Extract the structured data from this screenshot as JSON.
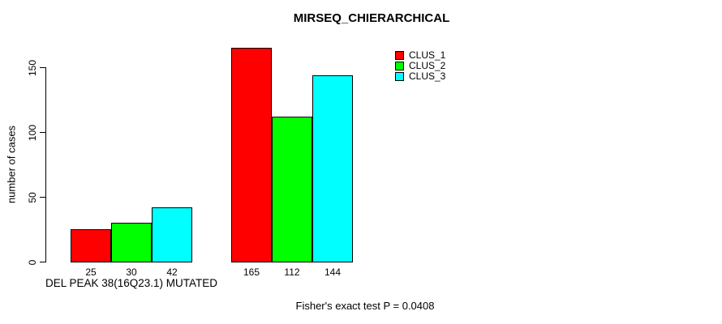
{
  "chart_data": {
    "type": "bar",
    "title": "MIRSEQ_CHIERARCHICAL",
    "ylabel": "number of cases",
    "xlabel": "DEL PEAK 38(16Q23.1) MUTATED",
    "series": [
      {
        "name": "CLUS_1",
        "color": "#ff0000",
        "values": [
          25,
          165
        ]
      },
      {
        "name": "CLUS_2",
        "color": "#00ff00",
        "values": [
          30,
          112
        ]
      },
      {
        "name": "CLUS_3",
        "color": "#00ffff",
        "values": [
          42,
          144
        ]
      }
    ],
    "bar_labels": [
      [
        "25",
        "30",
        "42"
      ],
      [
        "165",
        "112",
        "144"
      ]
    ],
    "y_ticks": [
      0,
      50,
      100,
      150
    ],
    "ylim": [
      0,
      165
    ],
    "grid": false,
    "legend_position": "top-right",
    "legend_entries": [
      "CLUS_1",
      "CLUS_2",
      "CLUS_3"
    ],
    "annotation": "Fisher's exact test P = 0.0408"
  },
  "colors": {
    "background": "#ffffff",
    "axis": "#000000",
    "text": "#000000"
  }
}
